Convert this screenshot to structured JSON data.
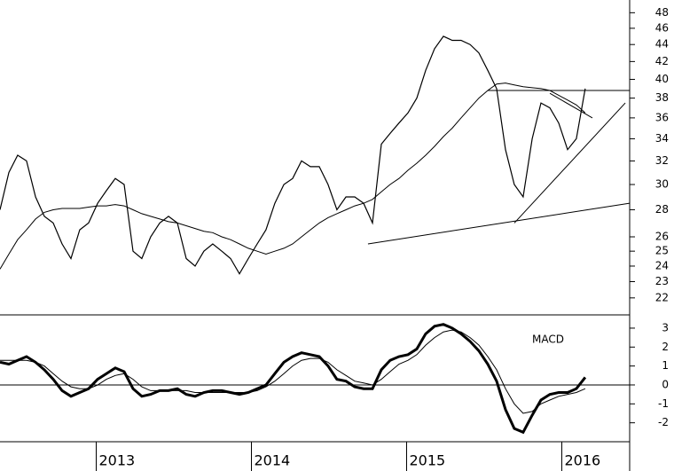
{
  "chart_data": [
    {
      "type": "price",
      "log_scale": true,
      "color": "#000000",
      "xlim": [
        2012.38,
        2016.38
      ],
      "ylim": [
        21,
        49.7
      ],
      "yticks": [
        48,
        46,
        44,
        42,
        40,
        38,
        36,
        34,
        32,
        30,
        28,
        26,
        25,
        24,
        23,
        22
      ],
      "x": [
        2012.38,
        2012.437,
        2012.494,
        2012.551,
        2012.609,
        2012.666,
        2012.723,
        2012.78,
        2012.837,
        2012.894,
        2012.951,
        2013.009,
        2013.066,
        2013.123,
        2013.18,
        2013.237,
        2013.294,
        2013.351,
        2013.409,
        2013.466,
        2013.523,
        2013.58,
        2013.637,
        2013.694,
        2013.751,
        2013.809,
        2013.866,
        2013.923,
        2013.98,
        2014.037,
        2014.094,
        2014.151,
        2014.209,
        2014.266,
        2014.323,
        2014.38,
        2014.437,
        2014.494,
        2014.551,
        2014.609,
        2014.666,
        2014.723,
        2014.78,
        2014.837,
        2014.894,
        2014.951,
        2015.009,
        2015.066,
        2015.123,
        2015.18,
        2015.237,
        2015.294,
        2015.351,
        2015.409,
        2015.466,
        2015.523,
        2015.58,
        2015.637,
        2015.694,
        2015.751,
        2015.809,
        2015.866,
        2015.923,
        2015.98,
        2016.037,
        2016.094,
        2016.151
      ],
      "series": [
        {
          "width": 1.2,
          "values": [
            28,
            31,
            32.5,
            32,
            29,
            27.5,
            27,
            25.5,
            24.5,
            26.5,
            27,
            28.5,
            29.5,
            30.5,
            30,
            25,
            24.5,
            26,
            27,
            27.5,
            27,
            24.5,
            24,
            25,
            25.5,
            25,
            24.5,
            23.5,
            24.5,
            25.5,
            26.5,
            28.5,
            30,
            30.5,
            32,
            31.5,
            31.5,
            30,
            28,
            29,
            29,
            28.5,
            27,
            33.5,
            34.5,
            35.5,
            36.5,
            38,
            41,
            43.5,
            45,
            44.5,
            44.5,
            44,
            43,
            41,
            39,
            33,
            30,
            29,
            34,
            37.5,
            37,
            35.5,
            33,
            34,
            39
          ]
        },
        {
          "width": 1,
          "values": [
            23.8,
            24.8,
            25.8,
            26.5,
            27.3,
            27.8,
            28,
            28.1,
            28.1,
            28.1,
            28.2,
            28.3,
            28.3,
            28.4,
            28.3,
            28,
            27.7,
            27.5,
            27.3,
            27.1,
            27,
            26.8,
            26.6,
            26.4,
            26.3,
            26,
            25.8,
            25.5,
            25.2,
            25,
            24.8,
            25,
            25.2,
            25.5,
            26,
            26.5,
            27,
            27.4,
            27.7,
            28,
            28.3,
            28.5,
            28.8,
            29.4,
            30,
            30.5,
            31.2,
            31.8,
            32.5,
            33.3,
            34.2,
            35,
            36,
            37,
            38,
            38.8,
            39.5,
            39.6,
            39.4,
            39.2,
            39.1,
            39,
            38.8,
            38.3,
            37.8,
            37.3,
            36.5
          ]
        }
      ],
      "trendlines": [
        {
          "x": [
            2015.523,
            2016.437
          ],
          "y": [
            38.8,
            38.8
          ]
        },
        {
          "x": [
            2014.751,
            2016.437
          ],
          "y": [
            25.5,
            28.5
          ]
        },
        {
          "x": [
            2015.694,
            2016.409
          ],
          "y": [
            27,
            37.5
          ]
        },
        {
          "x": [
            2015.923,
            2016.197
          ],
          "y": [
            38.5,
            36
          ]
        }
      ]
    },
    {
      "type": "macd",
      "label": "MACD",
      "color": "#000000",
      "xlim": [
        2012.38,
        2016.38
      ],
      "ylim": [
        -3,
        3.7
      ],
      "yticks": [
        3,
        2,
        1,
        0,
        -1,
        -2
      ],
      "zero_line": 0,
      "xticks": [
        2013,
        2014,
        2015,
        2016
      ],
      "x": [
        2012.38,
        2012.437,
        2012.494,
        2012.551,
        2012.609,
        2012.666,
        2012.723,
        2012.78,
        2012.837,
        2012.894,
        2012.951,
        2013.009,
        2013.066,
        2013.123,
        2013.18,
        2013.237,
        2013.294,
        2013.351,
        2013.409,
        2013.466,
        2013.523,
        2013.58,
        2013.637,
        2013.694,
        2013.751,
        2013.809,
        2013.866,
        2013.923,
        2013.98,
        2014.037,
        2014.094,
        2014.151,
        2014.209,
        2014.266,
        2014.323,
        2014.38,
        2014.437,
        2014.494,
        2014.551,
        2014.609,
        2014.666,
        2014.723,
        2014.78,
        2014.837,
        2014.894,
        2014.951,
        2015.009,
        2015.066,
        2015.123,
        2015.18,
        2015.237,
        2015.294,
        2015.351,
        2015.409,
        2015.466,
        2015.523,
        2015.58,
        2015.637,
        2015.694,
        2015.751,
        2015.809,
        2015.866,
        2015.923,
        2015.98,
        2016.037,
        2016.094,
        2016.151
      ],
      "series": [
        {
          "width": 3,
          "values": [
            1.2,
            1.1,
            1.3,
            1.5,
            1.2,
            0.8,
            0.3,
            -0.3,
            -0.6,
            -0.4,
            -0.2,
            0.3,
            0.6,
            0.9,
            0.7,
            -0.2,
            -0.6,
            -0.5,
            -0.3,
            -0.3,
            -0.2,
            -0.5,
            -0.6,
            -0.4,
            -0.3,
            -0.3,
            -0.4,
            -0.5,
            -0.4,
            -0.2,
            0,
            0.6,
            1.2,
            1.5,
            1.7,
            1.6,
            1.5,
            1.0,
            0.3,
            0.2,
            -0.1,
            -0.2,
            -0.2,
            0.8,
            1.3,
            1.5,
            1.6,
            1.9,
            2.7,
            3.1,
            3.2,
            3.0,
            2.7,
            2.3,
            1.8,
            1.1,
            0.2,
            -1.3,
            -2.3,
            -2.5,
            -1.6,
            -0.8,
            -0.5,
            -0.4,
            -0.4,
            -0.2,
            0.4
          ]
        },
        {
          "width": 1,
          "values": [
            1.3,
            1.3,
            1.3,
            1.3,
            1.2,
            1.0,
            0.6,
            0.2,
            -0.1,
            -0.2,
            -0.2,
            0,
            0.3,
            0.5,
            0.6,
            0.3,
            -0.1,
            -0.3,
            -0.3,
            -0.3,
            -0.3,
            -0.3,
            -0.4,
            -0.4,
            -0.4,
            -0.4,
            -0.4,
            -0.4,
            -0.4,
            -0.3,
            -0.1,
            0.2,
            0.6,
            1.0,
            1.3,
            1.4,
            1.4,
            1.2,
            0.8,
            0.5,
            0.2,
            0.1,
            0,
            0.3,
            0.7,
            1.1,
            1.3,
            1.6,
            2.1,
            2.5,
            2.8,
            2.9,
            2.8,
            2.5,
            2.1,
            1.5,
            0.8,
            -0.2,
            -1.0,
            -1.5,
            -1.4,
            -1.0,
            -0.8,
            -0.6,
            -0.5,
            -0.4,
            -0.2
          ]
        }
      ]
    }
  ]
}
